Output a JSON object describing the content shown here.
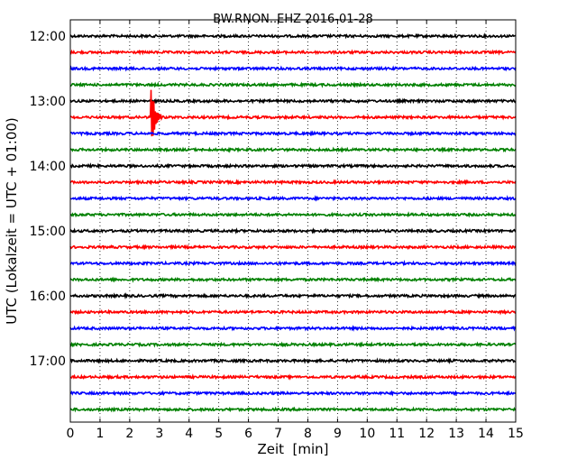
{
  "chart_data": {
    "type": "line",
    "title": "BW.RNON..EHZ 2016-01-28",
    "xlabel": "Zeit  [min]",
    "ylabel": "UTC (Lokalzeit = UTC + 01:00)",
    "xlim": [
      0,
      15
    ],
    "x_ticks": [
      "0",
      "1",
      "2",
      "3",
      "4",
      "5",
      "6",
      "7",
      "8",
      "9",
      "10",
      "11",
      "12",
      "13",
      "14",
      "15"
    ],
    "y_ticks": [
      "12:00",
      "13:00",
      "14:00",
      "15:00",
      "16:00",
      "17:00"
    ],
    "trace_interval_min": 15,
    "grid": "vertical dotted",
    "trace_colors": [
      "#000000",
      "#ff0000",
      "#0000ff",
      "#008000"
    ],
    "traces": [
      {
        "start": "12:00",
        "color": "#000000"
      },
      {
        "start": "12:15",
        "color": "#ff0000"
      },
      {
        "start": "12:30",
        "color": "#0000ff"
      },
      {
        "start": "12:45",
        "color": "#008000"
      },
      {
        "start": "13:00",
        "color": "#000000"
      },
      {
        "start": "13:15",
        "color": "#ff0000",
        "event_at_min": 2.75
      },
      {
        "start": "13:30",
        "color": "#0000ff"
      },
      {
        "start": "13:45",
        "color": "#008000"
      },
      {
        "start": "14:00",
        "color": "#000000"
      },
      {
        "start": "14:15",
        "color": "#ff0000"
      },
      {
        "start": "14:30",
        "color": "#0000ff"
      },
      {
        "start": "14:45",
        "color": "#008000"
      },
      {
        "start": "15:00",
        "color": "#000000"
      },
      {
        "start": "15:15",
        "color": "#ff0000"
      },
      {
        "start": "15:30",
        "color": "#0000ff"
      },
      {
        "start": "15:45",
        "color": "#008000"
      },
      {
        "start": "16:00",
        "color": "#000000"
      },
      {
        "start": "16:15",
        "color": "#ff0000"
      },
      {
        "start": "16:30",
        "color": "#0000ff"
      },
      {
        "start": "16:45",
        "color": "#008000"
      },
      {
        "start": "17:00",
        "color": "#000000"
      },
      {
        "start": "17:15",
        "color": "#ff0000"
      },
      {
        "start": "17:30",
        "color": "#0000ff"
      },
      {
        "start": "17:45",
        "color": "#008000"
      }
    ]
  }
}
